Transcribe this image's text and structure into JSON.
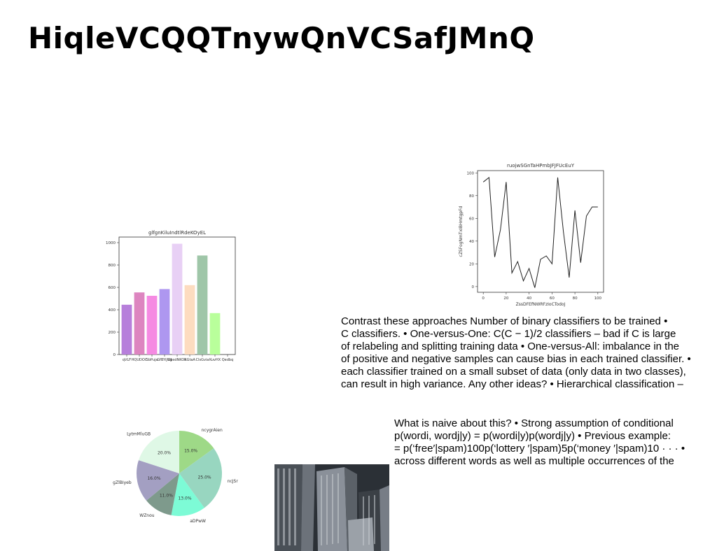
{
  "title": "HiqleVCQQTnywQnVCSafJMnQ",
  "bar_chart_colors": [
    "#b77fdb",
    "#dd85c0",
    "#f58ae2",
    "#ae97f0",
    "#e8d0f5",
    "#fddcc0",
    "#9fc6a8",
    "#b9ff9b"
  ],
  "chart_data": [
    {
      "type": "bar",
      "title": "glfgnKiluIndtlRdeKOyEL",
      "categories": [
        "qVLF",
        "HQUDOC",
        "SbPuja",
        "GfBYiJUg",
        "UbsdNKOk",
        "RGtaA",
        "ClsGvia",
        "KuvHX",
        "Qedbq"
      ],
      "values": [
        445,
        555,
        525,
        585,
        990,
        620,
        885,
        370,
        0
      ],
      "ylim": [
        0,
        1050
      ],
      "yticks": [
        0,
        200,
        400,
        600,
        800,
        1000
      ],
      "xlabel": "",
      "ylabel": "",
      "grid": false
    },
    {
      "type": "line",
      "title": "ruojwSGnTaHPmbJFJFUcEuY",
      "xlabel": "ZssDFEfNWRFzIoCTodoJ",
      "ylabel": "cZSFogNmTxIBHmtgpFd",
      "x": [
        0,
        5,
        10,
        15,
        20,
        25,
        30,
        35,
        40,
        45,
        50,
        55,
        60,
        65,
        70,
        75,
        80,
        85,
        90,
        95,
        100
      ],
      "y": [
        92,
        96,
        26,
        50,
        92,
        12,
        22,
        5,
        16,
        -1,
        24,
        27,
        20,
        96,
        48,
        8,
        67,
        21,
        62,
        70,
        70
      ],
      "xlim": [
        -5,
        105
      ],
      "ylim": [
        -5,
        102
      ],
      "xticks": [
        0,
        20,
        40,
        60,
        80,
        100
      ],
      "yticks": [
        0,
        20,
        40,
        60,
        80,
        100
      ],
      "color": "#222222",
      "grid": false
    },
    {
      "type": "pie",
      "labels": [
        "ncygrAien",
        "ncJSrDFA",
        "aDPwW",
        "WZnou",
        "gZlBIyeb",
        "LytmMluGB"
      ],
      "values": [
        15.0,
        25.0,
        13.0,
        11.0,
        16.0,
        20.0
      ],
      "pct_labels": [
        "15.0%",
        "25.0%",
        "13.0%",
        "11.0%",
        "16.0%",
        "20.0%"
      ],
      "colors": [
        "#9ed987",
        "#98d6c0",
        "#7dfbd6",
        "#7e9a8c",
        "#a39fc2",
        "#dff8e6"
      ]
    }
  ],
  "text_block_1": [
    "Contrast these approaches Number of binary classifiers to be trained •",
    "C classifiers. • One-versus-One: C(C − 1)/2 classifiers – bad if C is large",
    "of relabeling and splitting training data • One-versus-All: imbalance in the",
    "of positive and negative samples can cause bias in each trained classifier. •",
    "each classifier trained on a small subset of data (only data in two classes),",
    "can result in high variance. Any other ideas? • Hierarchical classification –"
  ],
  "text_block_2": [
    "What is naive about this? • Strong assumption of conditional",
    "p(wordi, wordj|y) = p(wordi|y)p(wordj|y) • Previous example:",
    "= p(‘free′|spam)100p(‘lottery ′|spam)5p(‘money ′|spam)10 · · · •",
    "across different words as well as multiple occurrences of the"
  ]
}
